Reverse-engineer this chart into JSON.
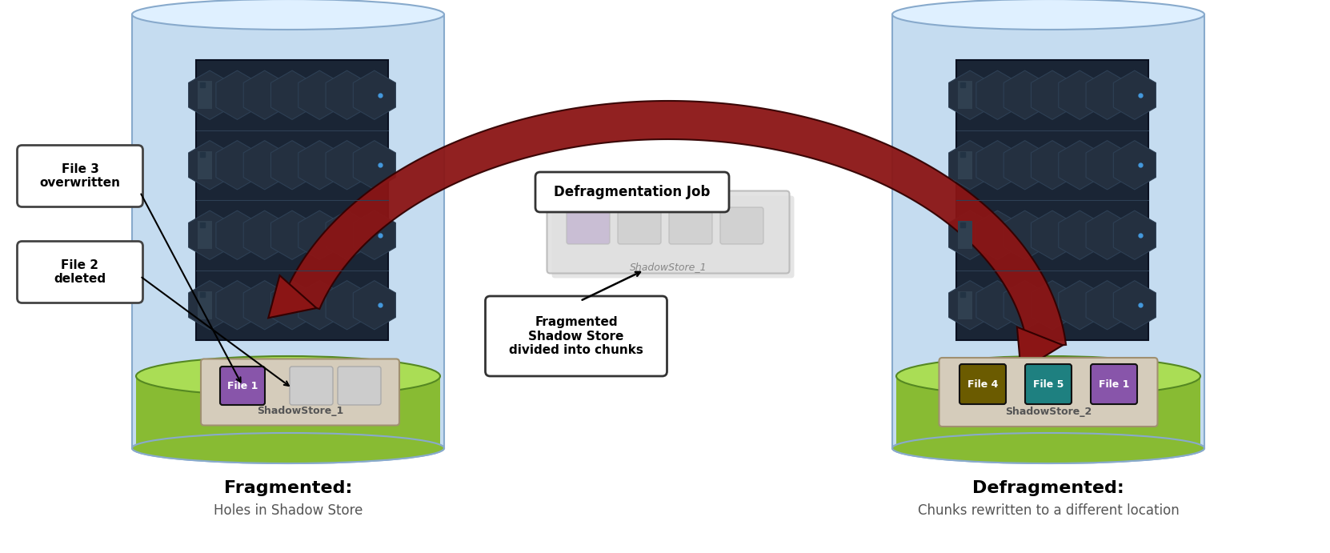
{
  "bg_color": "#ffffff",
  "title_left": "Fragmented:",
  "subtitle_left": "Holes in Shadow Store",
  "title_right": "Defragmented:",
  "subtitle_right": "Chunks rewritten to a different location",
  "label_file3": "File 3\noverwritten",
  "label_file2": "File 2\ndeleted",
  "label_defrag_job": "Defragmentation Job",
  "label_frag_shadow": "Fragmented\nShadow Store\ndivided into chunks",
  "shadowstore_1_label": "ShadowStore_1",
  "shadowstore_2_label": "ShadowStore_2",
  "shadowstore_center_label": "ShadowStore_1",
  "file1_color": "#8855AA",
  "file4_color": "#6B5B00",
  "file5_color": "#1E8080",
  "file1_right_color": "#8855AA",
  "cylinder_body": "#C5DCF0",
  "cylinder_top": "#DFF0FF",
  "cylinder_stroke": "#88AACC",
  "grass_color": "#88BB33",
  "grass_highlight": "#AADD55",
  "grass_dark": "#558822",
  "store_bg": "#D5CCBB",
  "store_border": "#A09070",
  "arrow_color": "#8B1515",
  "arrow_outline": "#330000",
  "box_bg": "#ffffff",
  "box_border": "#444444",
  "ghost_bg": "#E0E0E0",
  "ghost_border": "#B8B8B8",
  "ghost_file_color": "#C0B0D0",
  "ghost_empty_color": "#CCCCCC",
  "server_bg": "#1A2535",
  "server_hex": "#243040",
  "server_hex_border": "#2E4055",
  "server_line": "#2E4055",
  "server_light_blue": "#4499DD",
  "server_light_green": "#44BB44"
}
